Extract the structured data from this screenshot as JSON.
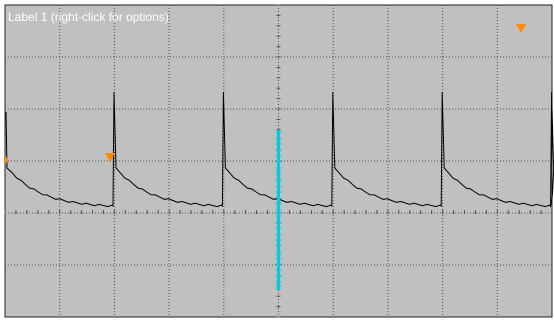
{
  "screen": {
    "label": "Label 1 (right-click for options)",
    "background_color": "#c0c0c0",
    "grid_color": "#505050",
    "trace_color": "#000000",
    "cursor_color": "#00ccdd",
    "marker_color": "#ff8c00",
    "marker_icon": "triangle-down-marker-icon",
    "level_marker_icon": "level-marker-icon"
  },
  "chart_data": {
    "type": "line",
    "grid": true,
    "divisions": {
      "horizontal": 10,
      "vertical": 6
    },
    "waveform": "periodic spikes with exponential decay",
    "pulses_visible": 5,
    "pulse_period_div": 2
  }
}
